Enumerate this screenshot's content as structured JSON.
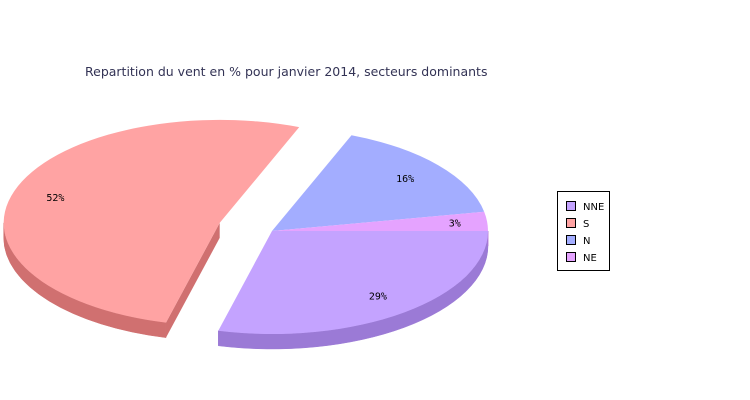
{
  "chart_data": {
    "type": "pie",
    "title": "Repartition du vent en % pour janvier 2014, secteurs dominants",
    "slices": [
      {
        "name": "NNE",
        "value": 29,
        "label": "29%",
        "color": "#c4a3ff",
        "side_color": "#9b7ad6"
      },
      {
        "name": "S",
        "value": 52,
        "label": "52%",
        "color": "#ffa3a3",
        "side_color": "#d07070"
      },
      {
        "name": "N",
        "value": 16,
        "label": "16%",
        "color": "#a3adff",
        "side_color": "#7a84d6"
      },
      {
        "name": "NE",
        "value": 3,
        "label": "3%",
        "color": "#e5a3ff",
        "side_color": "#b97ad6"
      }
    ],
    "exploded": "S",
    "legend_position": "right"
  }
}
